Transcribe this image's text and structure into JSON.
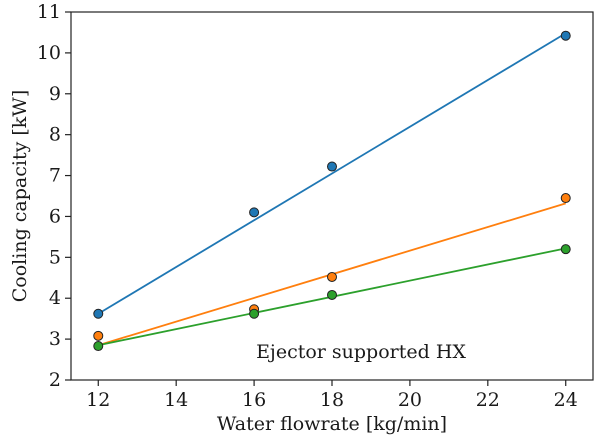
{
  "chart_data": {
    "type": "scatter",
    "xlabel": "Water flowrate [kg/min]",
    "ylabel": "Cooling capacity [kW]",
    "xlim": [
      11.3,
      24.7
    ],
    "ylim": [
      2,
      11
    ],
    "xticks": [
      12,
      14,
      16,
      18,
      20,
      22,
      24
    ],
    "yticks": [
      2,
      3,
      4,
      5,
      6,
      7,
      8,
      9,
      10,
      11
    ],
    "grid": false,
    "annotation": "Ejector supported HX",
    "series": [
      {
        "color": "#1f77b4",
        "points": [
          [
            12,
            3.62
          ],
          [
            16,
            6.1
          ],
          [
            18,
            7.22
          ],
          [
            24,
            10.42
          ]
        ],
        "fit": [
          [
            12,
            3.62
          ],
          [
            24,
            10.48
          ]
        ]
      },
      {
        "color": "#ff7f0e",
        "points": [
          [
            12,
            3.08
          ],
          [
            16,
            3.73
          ],
          [
            18,
            4.52
          ],
          [
            24,
            6.45
          ]
        ],
        "fit": [
          [
            12,
            2.85
          ],
          [
            24,
            6.32
          ]
        ]
      },
      {
        "color": "#2ca02c",
        "points": [
          [
            12,
            2.83
          ],
          [
            16,
            3.62
          ],
          [
            18,
            4.08
          ],
          [
            24,
            5.2
          ]
        ],
        "fit": [
          [
            12,
            2.85
          ],
          [
            24,
            5.22
          ]
        ]
      }
    ]
  }
}
